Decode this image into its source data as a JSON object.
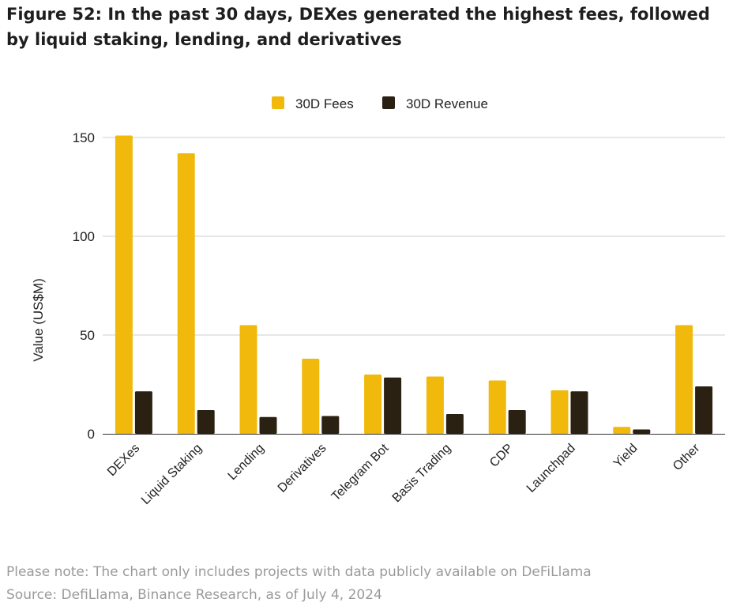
{
  "title": "Figure 52: In the past 30 days, DEXes generated the highest fees, followed by liquid staking, lending, and derivatives",
  "notes": {
    "note": "Please note: The chart only includes projects with data publicly available on DeFiLlama",
    "source": "Source: DefiLlama, Binance Research, as of July 4, 2024"
  },
  "chart_data": {
    "type": "bar",
    "title": "",
    "xlabel": "",
    "ylabel": "Value (US$M)",
    "ylim": [
      0,
      150
    ],
    "yticks": [
      "0",
      "50",
      "100",
      "150"
    ],
    "grid": true,
    "legend_position": "top-center",
    "categories": [
      "DEXes",
      "Liquid Staking",
      "Lending",
      "Derivatives",
      "Telegram Bot",
      "Basis Trading",
      "CDP",
      "Launchpad",
      "Yield",
      "Other"
    ],
    "series": [
      {
        "name": "30D Fees",
        "color": "#f0b90b",
        "values": [
          151,
          142,
          55,
          38,
          30,
          29,
          27,
          22,
          3.5,
          55
        ]
      },
      {
        "name": "30D Revenue",
        "color": "#2b2113",
        "values": [
          21.5,
          12,
          8.5,
          9,
          28.5,
          10,
          12,
          21.5,
          2.2,
          24
        ]
      }
    ]
  }
}
